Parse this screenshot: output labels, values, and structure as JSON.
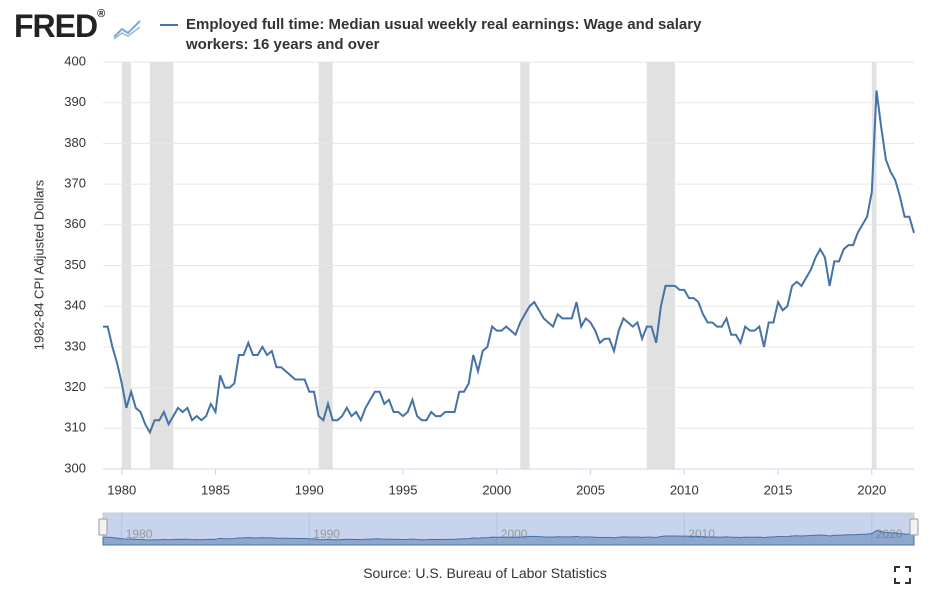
{
  "chart_data": {
    "type": "line",
    "series": [
      {
        "name": "Employed full time: Median usual weekly real earnings: Wage and salary workers: 16 years and over",
        "color": "#4572a7",
        "values": [
          335,
          335,
          330,
          326,
          321,
          315,
          319,
          315,
          314,
          311,
          309,
          312,
          312,
          314,
          311,
          313,
          315,
          314,
          315,
          312,
          313,
          312,
          313,
          316,
          314,
          323,
          320,
          320,
          321,
          328,
          328,
          331,
          328,
          328,
          330,
          328,
          329,
          325,
          325,
          324,
          323,
          322,
          322,
          322,
          319,
          319,
          313,
          312,
          316,
          312,
          312,
          313,
          315,
          313,
          314,
          312,
          315,
          317,
          319,
          319,
          316,
          317,
          314,
          314,
          313,
          314,
          317,
          313,
          312,
          312,
          314,
          313,
          313,
          314,
          314,
          314,
          319,
          319,
          321,
          328,
          324,
          329,
          330,
          335,
          334,
          334,
          335,
          334,
          333,
          336,
          338,
          340,
          341,
          339,
          337,
          336,
          335,
          338,
          337,
          337,
          337,
          341,
          335,
          337,
          336,
          334,
          331,
          332,
          332,
          329,
          334,
          337,
          336,
          335,
          336,
          332,
          335,
          335,
          331,
          340,
          345,
          345,
          345,
          344,
          344,
          342,
          342,
          341,
          338,
          336,
          336,
          335,
          335,
          337,
          333,
          333,
          331,
          335,
          334,
          334,
          335,
          330,
          336,
          336,
          341,
          339,
          340,
          345,
          346,
          345,
          347,
          349,
          352,
          354,
          352,
          345,
          351,
          351,
          354,
          355,
          355,
          358,
          360,
          362,
          368,
          393,
          384,
          376,
          373,
          371,
          367,
          362,
          362,
          358
        ]
      }
    ],
    "x": [
      1979,
      1979.25,
      1979.5,
      1979.75,
      1980,
      1980.25,
      1980.5,
      1980.75,
      1981,
      1981.25,
      1981.5,
      1981.75,
      1982,
      1982.25,
      1982.5,
      1982.75,
      1983,
      1983.25,
      1983.5,
      1983.75,
      1984,
      1984.25,
      1984.5,
      1984.75,
      1985,
      1985.25,
      1985.5,
      1985.75,
      1986,
      1986.25,
      1986.5,
      1986.75,
      1987,
      1987.25,
      1987.5,
      1987.75,
      1988,
      1988.25,
      1988.5,
      1988.75,
      1989,
      1989.25,
      1989.5,
      1989.75,
      1990,
      1990.25,
      1990.5,
      1990.75,
      1991,
      1991.25,
      1991.5,
      1991.75,
      1992,
      1992.25,
      1992.5,
      1992.75,
      1993,
      1993.25,
      1993.5,
      1993.75,
      1994,
      1994.25,
      1994.5,
      1994.75,
      1995,
      1995.25,
      1995.5,
      1995.75,
      1996,
      1996.25,
      1996.5,
      1996.75,
      1997,
      1997.25,
      1997.5,
      1997.75,
      1998,
      1998.25,
      1998.5,
      1998.75,
      1999,
      1999.25,
      1999.5,
      1999.75,
      2000,
      2000.25,
      2000.5,
      2000.75,
      2001,
      2001.25,
      2001.5,
      2001.75,
      2002,
      2002.25,
      2002.5,
      2002.75,
      2003,
      2003.25,
      2003.5,
      2003.75,
      2004,
      2004.25,
      2004.5,
      2004.75,
      2005,
      2005.25,
      2005.5,
      2005.75,
      2006,
      2006.25,
      2006.5,
      2006.75,
      2007,
      2007.25,
      2007.5,
      2007.75,
      2008,
      2008.25,
      2008.5,
      2008.75,
      2009,
      2009.25,
      2009.5,
      2009.75,
      2010,
      2010.25,
      2010.5,
      2010.75,
      2011,
      2011.25,
      2011.5,
      2011.75,
      2012,
      2012.25,
      2012.5,
      2012.75,
      2013,
      2013.25,
      2013.5,
      2013.75,
      2014,
      2014.25,
      2014.5,
      2014.75,
      2015,
      2015.25,
      2015.5,
      2015.75,
      2016,
      2016.25,
      2016.5,
      2016.75,
      2017,
      2017.25,
      2017.5,
      2017.75,
      2018,
      2018.25,
      2018.5,
      2018.75,
      2019,
      2019.25,
      2019.5,
      2019.75,
      2020,
      2020.25,
      2020.5,
      2020.75,
      2021,
      2021.25,
      2021.5,
      2021.75,
      2022,
      2022.25
    ],
    "xlim": [
      1979,
      2022.25
    ],
    "xticks": [
      1980,
      1985,
      1990,
      1995,
      2000,
      2005,
      2010,
      2015,
      2020
    ],
    "ylim": [
      300,
      400
    ],
    "yticks": [
      300,
      310,
      320,
      330,
      340,
      350,
      360,
      370,
      380,
      390,
      400
    ],
    "grid": true,
    "y_label": "1982-84 CPI Adjusted Dollars",
    "recessions": [
      [
        1980,
        1980.5
      ],
      [
        1981.5,
        1982.75
      ],
      [
        1990.5,
        1991.25
      ],
      [
        2001.25,
        2001.75
      ],
      [
        2008,
        2009.5
      ],
      [
        2020,
        2020.25
      ]
    ],
    "navigator_ticks": [
      1980,
      1990,
      2000,
      2010,
      2020
    ],
    "source": "Source: U.S. Bureau of Labor Statistics"
  }
}
